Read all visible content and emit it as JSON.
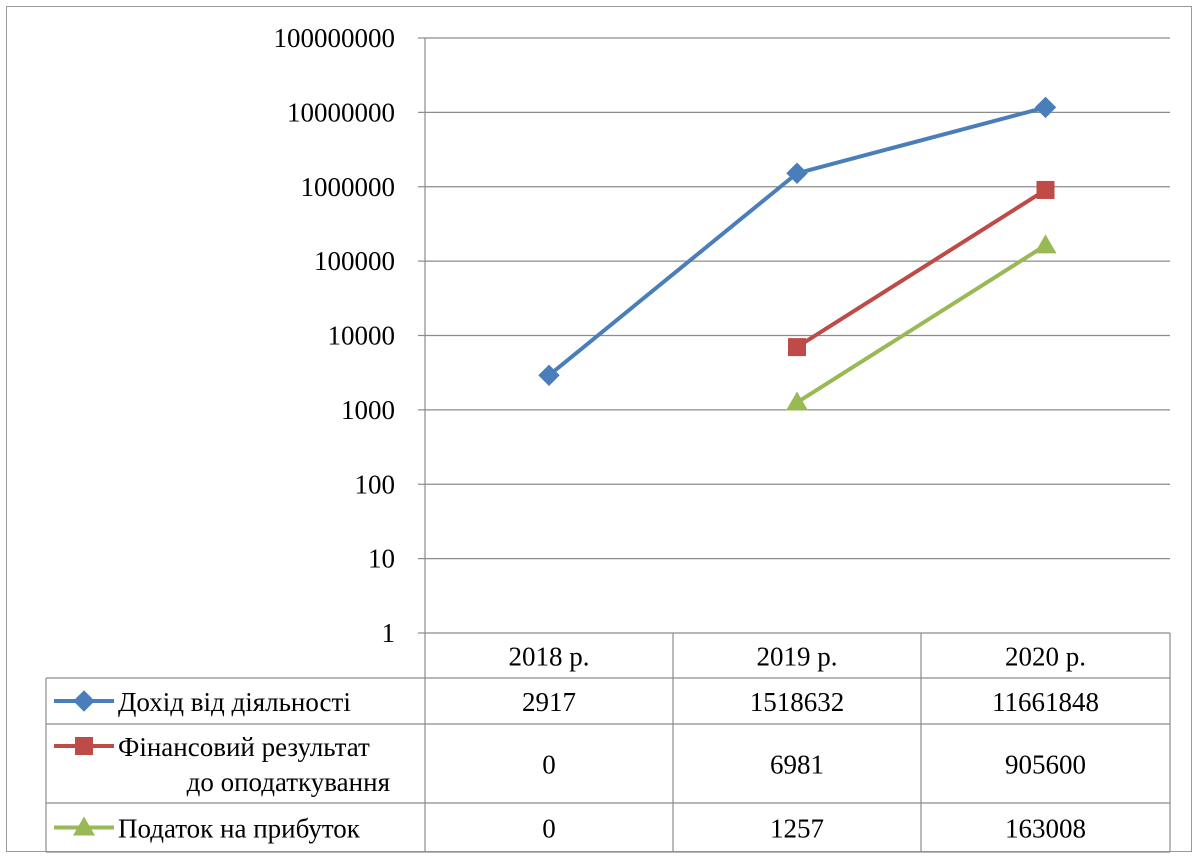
{
  "chart_data": {
    "type": "line",
    "y_scale": "log",
    "ylim": [
      1,
      100000000
    ],
    "y_ticks": [
      "1",
      "10",
      "100",
      "1000",
      "10000",
      "100000",
      "1000000",
      "10000000",
      "100000000"
    ],
    "categories": [
      "2018 р.",
      "2019 р.",
      "2020 р."
    ],
    "grid": true,
    "legend": "data-table-left",
    "series": [
      {
        "name": "Дохід від діяльності",
        "name_lines": [
          "Дохід від діяльності"
        ],
        "values": [
          2917,
          1518632,
          11661848
        ],
        "labels": [
          "2917",
          "1518632",
          "11661848"
        ],
        "color": "#4a7ebb",
        "marker": "diamond"
      },
      {
        "name": "Фінансовий результат до оподаткування",
        "name_lines": [
          "Фінансовий результат",
          "до оподаткування"
        ],
        "values": [
          0,
          6981,
          905600
        ],
        "labels": [
          "0",
          "6981",
          "905600"
        ],
        "color": "#be4b48",
        "marker": "square"
      },
      {
        "name": "Податок на прибуток",
        "name_lines": [
          "Податок на прибуток"
        ],
        "values": [
          0,
          1257,
          163008
        ],
        "labels": [
          "0",
          "1257",
          "163008"
        ],
        "color": "#98b954",
        "marker": "triangle"
      }
    ]
  }
}
